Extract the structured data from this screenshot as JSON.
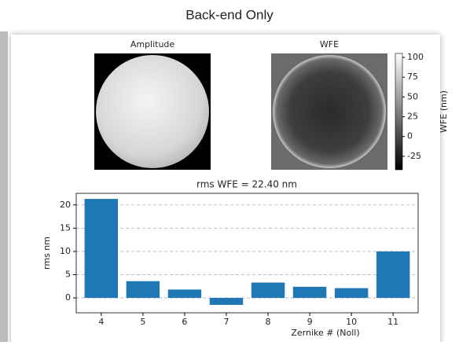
{
  "slide_title": "Back-end Only",
  "chart_data": [
    {
      "type": "image",
      "title": "Amplitude"
    },
    {
      "type": "image",
      "title": "WFE",
      "colorbar_label": "WFE (nm)",
      "clim": [
        -42,
        105
      ],
      "cticks": [
        100,
        75,
        50,
        25,
        0,
        -25
      ]
    },
    {
      "type": "bar",
      "title": "rms WFE = 22.40 nm",
      "x": [
        4,
        5,
        6,
        7,
        8,
        9,
        10,
        11
      ],
      "values": [
        21.3,
        3.6,
        1.8,
        -1.5,
        3.3,
        2.4,
        2.1,
        10.0
      ],
      "color": "#1f77b4",
      "xlim": [
        3.4,
        11.6
      ],
      "ylim": [
        -3.2,
        22.5
      ],
      "yticks": [
        0,
        5,
        10,
        15,
        20
      ],
      "grid": true,
      "xlabel": "Zernike # (Noll)",
      "ylabel": "rms nm"
    }
  ]
}
